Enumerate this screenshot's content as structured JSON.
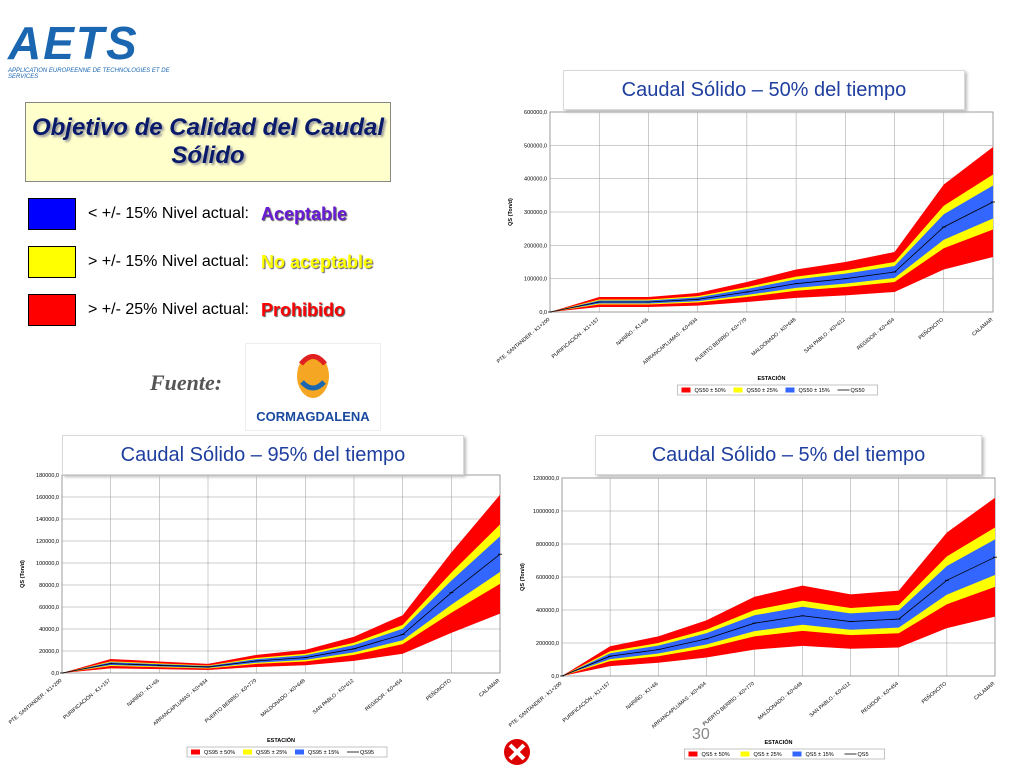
{
  "logo": {
    "name": "AETS",
    "tagline": "APPLICATION EUROPEENNE DE TECHNOLOGIES ET DE SERVICES"
  },
  "heading": "Objetivo de Calidad del Caudal Sólido",
  "levels": [
    {
      "text": "< +/- 15% Nivel actual:",
      "status": "Aceptable",
      "color": "#0000ff",
      "status_color": "#6a1bd6"
    },
    {
      "text": "> +/-  15% Nivel actual:",
      "status": "No aceptable",
      "color": "#ffff00",
      "status_color": "#ffff00"
    },
    {
      "text": "> +/- 25% Nivel actual:",
      "status": "Prohibido",
      "color": "#ff0000",
      "status_color": "#ff0000"
    }
  ],
  "source_label": "Fuente:",
  "source": "CORMAGDALENA",
  "page_number": "30",
  "chart_data": [
    {
      "type": "band",
      "title": "Caudal Sólido – 50% del tiempo",
      "y_label": "QS (Ton/d)",
      "x_label": "ESTACIÓN",
      "categories": [
        "PTE. SANTANDER - K1+200",
        "PURIFICACIÓN - K1+157",
        "NARIÑO - K1+66",
        "ARRANCAPLUMAS - K0+934",
        "PUERTO BERRÍO - K0+770",
        "MALDONADO - K0+648",
        "SAN PABLO - K0+612",
        "REGIDOR - K0+454",
        "PEÑONCITO",
        "CALAMAR"
      ],
      "values": [
        0,
        30000,
        30000,
        38000,
        60000,
        85000,
        100000,
        120000,
        255000,
        330000
      ],
      "series": [
        {
          "name": "QS50 ± 50%",
          "color": "#ff0000",
          "spread": 50
        },
        {
          "name": "QS50 ± 25%",
          "color": "#ffff00",
          "spread": 25
        },
        {
          "name": "QS50 ± 15%",
          "color": "#3366ff",
          "spread": 15
        },
        {
          "name": "QS50",
          "color": "#000000"
        }
      ],
      "ylim": [
        0,
        600000
      ],
      "yticks": [
        {
          "value": 0,
          "label": "0,0"
        },
        {
          "value": 100000,
          "label": "100000,0"
        },
        {
          "value": 200000,
          "label": "200000,0"
        },
        {
          "value": 300000,
          "label": "300000,0"
        },
        {
          "value": 400000,
          "label": "400000,0"
        },
        {
          "value": 500000,
          "label": "500000,0"
        },
        {
          "value": 600000,
          "label": "600000,0"
        }
      ],
      "grid": true
    },
    {
      "type": "band",
      "title": "Caudal Sólido – 95% del tiempo",
      "y_label": "QS (Ton/d)",
      "x_label": "ESTACIÓN",
      "categories": [
        "PTE. SANTANDER - K1+200",
        "PURIFICACIÓN - K1+157",
        "NARIÑO - K1+66",
        "ARRANCAPLUMAS - K0+934",
        "PUERTO BERRÍO - K0+770",
        "MALDONADO - K0+648",
        "SAN PABLO - K0+612",
        "REGIDOR - K0+454",
        "PEÑONCITO",
        "CALAMAR"
      ],
      "values": [
        0,
        8500,
        7000,
        5500,
        11000,
        14000,
        22000,
        35000,
        73000,
        108000
      ],
      "series": [
        {
          "name": "QS95 ± 50%",
          "color": "#ff0000",
          "spread": 50
        },
        {
          "name": "QS95 ± 25%",
          "color": "#ffff00",
          "spread": 25
        },
        {
          "name": "QS95 ± 15%",
          "color": "#3366ff",
          "spread": 15
        },
        {
          "name": "QS95",
          "color": "#000000"
        }
      ],
      "ylim": [
        0,
        180000
      ],
      "yticks": [
        {
          "value": 0,
          "label": "0,0"
        },
        {
          "value": 20000,
          "label": "20000,0"
        },
        {
          "value": 40000,
          "label": "40000,0"
        },
        {
          "value": 60000,
          "label": "60000,0"
        },
        {
          "value": 80000,
          "label": "80000,0"
        },
        {
          "value": 100000,
          "label": "100000,0"
        },
        {
          "value": 120000,
          "label": "120000,0"
        },
        {
          "value": 140000,
          "label": "140000,0"
        },
        {
          "value": 160000,
          "label": "160000,0"
        },
        {
          "value": 180000,
          "label": "180000,0"
        }
      ],
      "grid": true
    },
    {
      "type": "band",
      "title": "Caudal Sólido  – 5% del tiempo",
      "y_label": "QS (Ton/d)",
      "x_label": "ESTACIÓN",
      "categories": [
        "PTE. SANTANDER - K1+200",
        "PURIFICACIÓN - K1+157",
        "NARIÑO - K1+66",
        "ARRANCAPLUMAS - K0+934",
        "PUERTO BERRÍO - K0+770",
        "MALDONADO - K0+648",
        "SAN PABLO - K0+612",
        "REGIDOR - K0+454",
        "PEÑONCITO",
        "CALAMAR"
      ],
      "values": [
        0,
        120000,
        160000,
        225000,
        320000,
        365000,
        330000,
        345000,
        580000,
        720000
      ],
      "series": [
        {
          "name": "QS5 ± 50%",
          "color": "#ff0000",
          "spread": 50
        },
        {
          "name": "QS5 ± 25%",
          "color": "#ffff00",
          "spread": 25
        },
        {
          "name": "QS5 ± 15%",
          "color": "#3366ff",
          "spread": 15
        },
        {
          "name": "QS5",
          "color": "#000000"
        }
      ],
      "ylim": [
        0,
        1200000
      ],
      "yticks": [
        {
          "value": 0,
          "label": "0,0"
        },
        {
          "value": 200000,
          "label": "200000,0"
        },
        {
          "value": 400000,
          "label": "400000,0"
        },
        {
          "value": 600000,
          "label": "600000,0"
        },
        {
          "value": 800000,
          "label": "800000,0"
        },
        {
          "value": 1000000,
          "label": "1000000,0"
        },
        {
          "value": 1200000,
          "label": "1200000,0"
        }
      ],
      "grid": true
    }
  ]
}
